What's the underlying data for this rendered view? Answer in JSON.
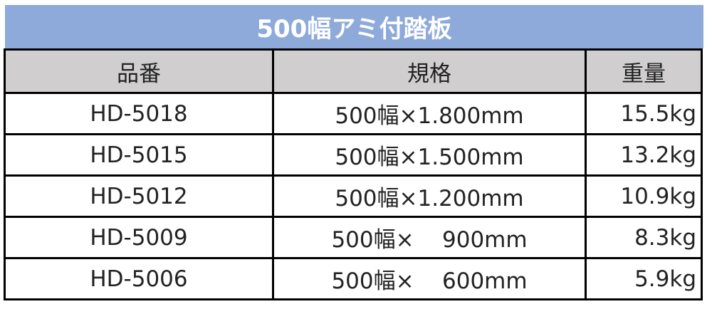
{
  "title": "500幅アミ付踏板",
  "headers": [
    "品番",
    "規格",
    "重量"
  ],
  "rows": [
    {
      "code": "HD-5018",
      "spec": "500幅×1.800mm",
      "weight": "15.5kg"
    },
    {
      "code": "HD-5015",
      "spec": "500幅×1.500mm",
      "weight": "13.2kg"
    },
    {
      "code": "HD-5012",
      "spec": "500幅×1.200mm",
      "weight": "10.9kg"
    },
    {
      "code": "HD-5009",
      "spec": "500幅×    900mm",
      "weight": "8.3kg"
    },
    {
      "code": "HD-5006",
      "spec": "500幅×    600mm",
      "weight": "5.9kg"
    }
  ],
  "colors": {
    "title_bg": "#8eaadb",
    "header_bg": "#d0cece"
  }
}
